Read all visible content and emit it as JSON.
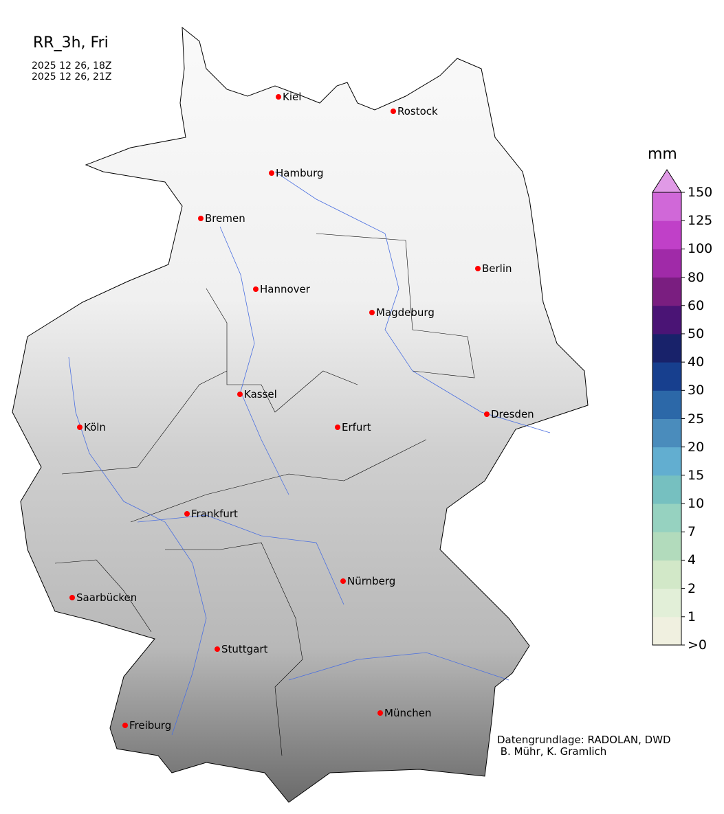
{
  "header": {
    "title": "RR_3h, Fri",
    "valid_from": "2025 12 26, 18Z",
    "valid_to": "2025 12 26, 21Z"
  },
  "map": {
    "region": "Germany",
    "background": "terrain greyscale",
    "cities": [
      {
        "name": "Kiel"
      },
      {
        "name": "Rostock"
      },
      {
        "name": "Hamburg"
      },
      {
        "name": "Bremen"
      },
      {
        "name": "Berlin"
      },
      {
        "name": "Hannover"
      },
      {
        "name": "Magdeburg"
      },
      {
        "name": "Kassel"
      },
      {
        "name": "Köln"
      },
      {
        "name": "Erfurt"
      },
      {
        "name": "Dresden"
      },
      {
        "name": "Frankfurt"
      },
      {
        "name": "Nürnberg"
      },
      {
        "name": "Saarbücken"
      },
      {
        "name": "Stuttgart"
      },
      {
        "name": "München"
      },
      {
        "name": "Freiburg"
      }
    ],
    "city_marker_color": "#ff0000",
    "river_color": "#4a6fe0"
  },
  "colorbar": {
    "unit": "mm",
    "ticks": [
      ">0",
      "1",
      "2",
      "4",
      "7",
      "10",
      "15",
      "20",
      "25",
      "30",
      "40",
      "50",
      "60",
      "80",
      "100",
      "125",
      "150"
    ],
    "colors": [
      "#f0f0e0",
      "#e2efd8",
      "#d2e8c8",
      "#b2dbbc",
      "#96d2c0",
      "#76c0c0",
      "#62aed0",
      "#4a8cbc",
      "#2c68a8",
      "#173f8e",
      "#18226a",
      "#4a1475",
      "#7a1e80",
      "#a02aa8",
      "#c040c8",
      "#d068d8"
    ],
    "extend_color": "#e09ae6"
  },
  "credit": {
    "line1": "Datengrundlage: RADOLAN, DWD",
    "line2": " B. Mühr, K. Gramlich"
  }
}
